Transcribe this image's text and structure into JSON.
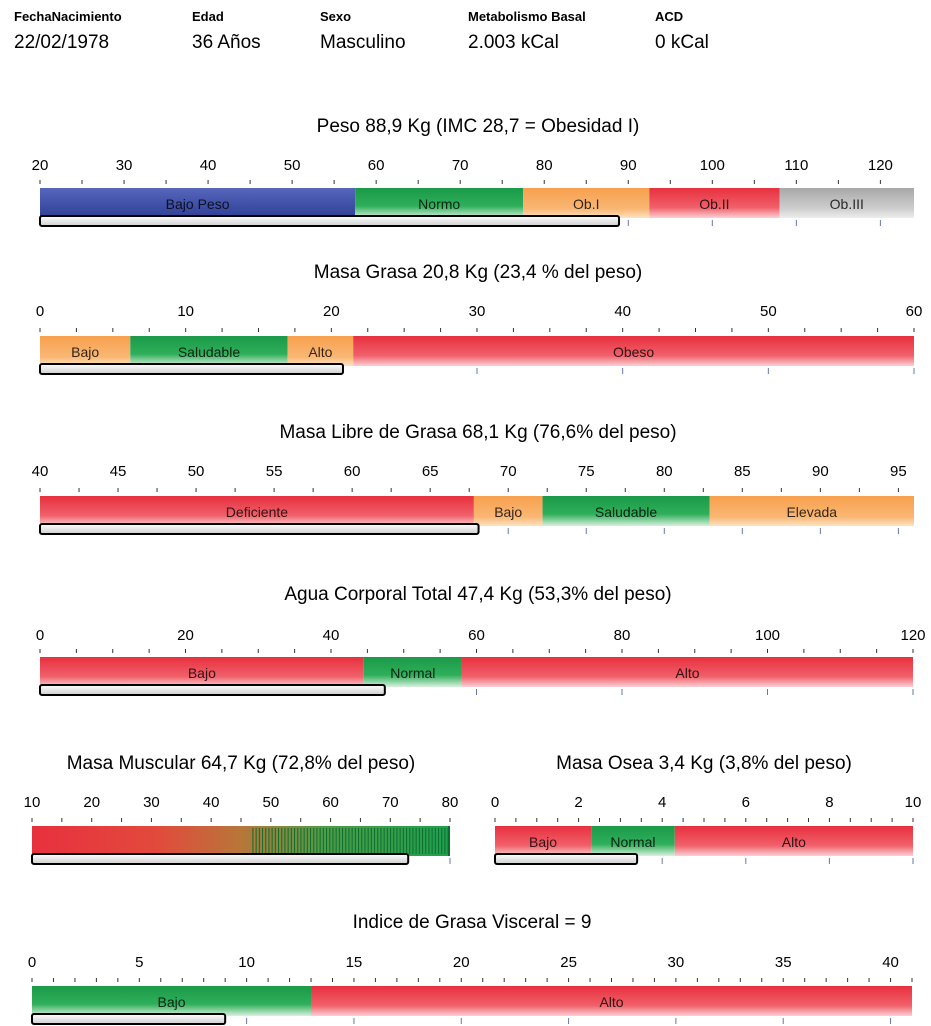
{
  "header": {
    "fields": [
      {
        "label": "FechaNacimiento",
        "value": "22/02/1978"
      },
      {
        "label": "Edad",
        "value": "36 Años"
      },
      {
        "label": "Sexo",
        "value": "Masculino"
      },
      {
        "label": "Metabolismo Basal",
        "value": "2.003 kCal"
      },
      {
        "label": "ACD",
        "value": "0 kCal"
      }
    ]
  },
  "colors": {
    "blue": "#3e52a6",
    "green": "#1ea04e",
    "orange": "#f79a45",
    "red": "#ea3848",
    "gray": "#b5b5b5",
    "indicator_fill": "#f2f2f2",
    "indicator_border": "#000000"
  },
  "chart_data": [
    {
      "type": "bar",
      "name": "peso",
      "title": "Peso   88,9 Kg   (IMC 28,7 = Obesidad I)",
      "xlim": [
        20,
        124
      ],
      "ticks": [
        20,
        30,
        40,
        50,
        60,
        70,
        80,
        90,
        100,
        110,
        120
      ],
      "minor_step": 5,
      "value": 88.9,
      "segments": [
        {
          "label": "Bajo Peso",
          "start": 20,
          "end": 57.5,
          "color": "blue"
        },
        {
          "label": "Normo",
          "start": 57.5,
          "end": 77.5,
          "color": "green"
        },
        {
          "label": "Ob.I",
          "start": 77.5,
          "end": 92.5,
          "color": "orange"
        },
        {
          "label": "Ob.II",
          "start": 92.5,
          "end": 108,
          "color": "red"
        },
        {
          "label": "Ob.III",
          "start": 108,
          "end": 124,
          "color": "gray"
        }
      ]
    },
    {
      "type": "bar",
      "name": "masa-grasa",
      "title": "Masa Grasa   20,8 Kg   (23,4 % del peso)",
      "xlim": [
        0,
        60
      ],
      "ticks": [
        0,
        10,
        20,
        30,
        40,
        50,
        60
      ],
      "minor_step": 2.5,
      "value": 20.8,
      "segments": [
        {
          "label": "Bajo",
          "start": 0,
          "end": 6.2,
          "color": "orange"
        },
        {
          "label": "Saludable",
          "start": 6.2,
          "end": 17,
          "color": "green"
        },
        {
          "label": "Alto",
          "start": 17,
          "end": 21.5,
          "color": "orange"
        },
        {
          "label": "Obeso",
          "start": 21.5,
          "end": 60,
          "color": "red"
        }
      ]
    },
    {
      "type": "bar",
      "name": "masa-libre-grasa",
      "title": "Masa Libre de Grasa   68,1 Kg   (76,6% del peso)",
      "xlim": [
        40,
        96
      ],
      "ticks": [
        40,
        45,
        50,
        55,
        60,
        65,
        70,
        75,
        80,
        85,
        90,
        95
      ],
      "minor_step": 2.5,
      "value": 68.1,
      "segments": [
        {
          "label": "Deficiente",
          "start": 40,
          "end": 67.8,
          "color": "red"
        },
        {
          "label": "Bajo",
          "start": 67.8,
          "end": 72.2,
          "color": "orange"
        },
        {
          "label": "Saludable",
          "start": 72.2,
          "end": 82.9,
          "color": "green"
        },
        {
          "label": "Elevada",
          "start": 82.9,
          "end": 96,
          "color": "orange"
        }
      ]
    },
    {
      "type": "bar",
      "name": "agua-corporal",
      "title": "Agua Corporal Total   47,4 Kg   (53,3% del peso)",
      "xlim": [
        0,
        120
      ],
      "ticks": [
        0,
        20,
        40,
        60,
        80,
        100,
        120
      ],
      "minor_step": 5,
      "value": 47.4,
      "segments": [
        {
          "label": "Bajo",
          "start": 0,
          "end": 44.5,
          "color": "red"
        },
        {
          "label": "Normal",
          "start": 44.5,
          "end": 58,
          "color": "green"
        },
        {
          "label": "Alto",
          "start": 58,
          "end": 120,
          "color": "red"
        }
      ]
    },
    {
      "type": "bar",
      "name": "masa-muscular",
      "title": "Masa Muscular   64,7 Kg (72,8% del peso)",
      "xlim": [
        10,
        80
      ],
      "ticks": [
        10,
        20,
        30,
        40,
        50,
        60,
        70,
        80
      ],
      "minor_step": 5,
      "value": 73,
      "gradient": true,
      "segments": []
    },
    {
      "type": "bar",
      "name": "masa-osea",
      "title": "Masa Osea   3,4 Kg   (3,8% del peso)",
      "xlim": [
        0,
        10
      ],
      "ticks": [
        0,
        2,
        4,
        6,
        8,
        10
      ],
      "minor_step": 0.5,
      "value": 3.4,
      "segments": [
        {
          "label": "Bajo",
          "start": 0,
          "end": 2.3,
          "color": "red"
        },
        {
          "label": "Normal",
          "start": 2.3,
          "end": 4.3,
          "color": "green"
        },
        {
          "label": "Alto",
          "start": 4.3,
          "end": 10,
          "color": "red"
        }
      ]
    },
    {
      "type": "bar",
      "name": "grasa-visceral",
      "title": "Indice de Grasa Visceral = 9",
      "xlim": [
        0,
        41
      ],
      "ticks": [
        0,
        5,
        10,
        15,
        20,
        25,
        30,
        35,
        40
      ],
      "minor_step": 1,
      "value": 9,
      "segments": [
        {
          "label": "Bajo",
          "start": 0,
          "end": 13,
          "color": "green"
        },
        {
          "label": "Alto",
          "start": 13,
          "end": 41,
          "color": "red"
        }
      ]
    }
  ]
}
